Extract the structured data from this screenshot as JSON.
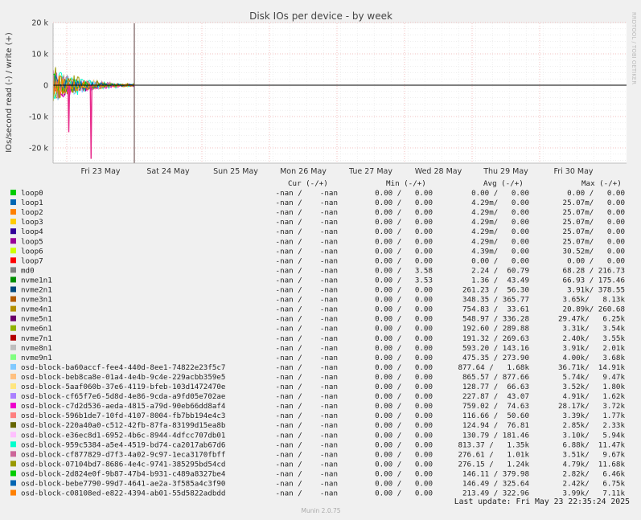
{
  "chart_data": {
    "type": "line",
    "title": "Disk IOs per device - by week",
    "ylabel": "IOs/second read (-) / write (+)",
    "ylim": [
      -25000,
      20000
    ],
    "y_ticks": [
      {
        "value": 20000,
        "label": "20 k"
      },
      {
        "value": 10000,
        "label": "10 k"
      },
      {
        "value": 0,
        "label": "0"
      },
      {
        "value": -10000,
        "label": "-10 k"
      },
      {
        "value": -20000,
        "label": "-20 k"
      }
    ],
    "x_ticks": [
      "Fri 23 May",
      "Sat 24 May",
      "Sun 25 May",
      "Mon 26 May",
      "Tue 27 May",
      "Wed 28 May",
      "Thu 29 May",
      "Fri 30 May"
    ],
    "grid": true,
    "legend_position": "bottom",
    "columns": {
      "cur": "Cur (-/+)",
      "min": "Min (-/+)",
      "avg": "Avg (-/+)",
      "max": "Max (-/+)"
    },
    "spikes": [
      {
        "day": 0.03,
        "value": -15000,
        "color": "#e7298a"
      },
      {
        "day": 0.36,
        "value": -23500,
        "color": "#e7298a"
      }
    ],
    "series": [
      {
        "name": "loop0",
        "color": "#00cc00",
        "cur": "-nan /    -nan",
        "min": "0.00 /   0.00",
        "avg": "0.00 /   0.00",
        "max": "0.00 /   0.00"
      },
      {
        "name": "loop1",
        "color": "#0066b3",
        "cur": "-nan /    -nan",
        "min": "0.00 /   0.00",
        "avg": "4.29m/   0.00",
        "max": "25.07m/   0.00"
      },
      {
        "name": "loop2",
        "color": "#ff8000",
        "cur": "-nan /    -nan",
        "min": "0.00 /   0.00",
        "avg": "4.29m/   0.00",
        "max": "25.07m/   0.00"
      },
      {
        "name": "loop3",
        "color": "#ffcc00",
        "cur": "-nan /    -nan",
        "min": "0.00 /   0.00",
        "avg": "4.29m/   0.00",
        "max": "25.07m/   0.00"
      },
      {
        "name": "loop4",
        "color": "#330099",
        "cur": "-nan /    -nan",
        "min": "0.00 /   0.00",
        "avg": "4.29m/   0.00",
        "max": "25.07m/   0.00"
      },
      {
        "name": "loop5",
        "color": "#990099",
        "cur": "-nan /    -nan",
        "min": "0.00 /   0.00",
        "avg": "4.29m/   0.00",
        "max": "25.07m/   0.00"
      },
      {
        "name": "loop6",
        "color": "#ccff00",
        "cur": "-nan /    -nan",
        "min": "0.00 /   0.00",
        "avg": "4.39m/   0.00",
        "max": "30.52m/   0.00"
      },
      {
        "name": "loop7",
        "color": "#ff0000",
        "cur": "-nan /    -nan",
        "min": "0.00 /   0.00",
        "avg": "0.00 /   0.00",
        "max": "0.00 /   0.00"
      },
      {
        "name": "md0",
        "color": "#808080",
        "cur": "-nan /    -nan",
        "min": "0.00 /   3.58",
        "avg": "2.24 /  60.79",
        "max": "68.28 / 216.73"
      },
      {
        "name": "nvme1n1",
        "color": "#008f00",
        "cur": "-nan /    -nan",
        "min": "0.00 /   3.53",
        "avg": "1.36 /  43.49",
        "max": "66.93 / 175.46"
      },
      {
        "name": "nvme2n1",
        "color": "#00487d",
        "cur": "-nan /    -nan",
        "min": "0.00 /   0.00",
        "avg": "261.23 /  56.30",
        "max": "3.91k/ 378.55"
      },
      {
        "name": "nvme3n1",
        "color": "#b35a00",
        "cur": "-nan /    -nan",
        "min": "0.00 /   0.00",
        "avg": "348.35 / 365.77",
        "max": "3.65k/   8.13k"
      },
      {
        "name": "nvme4n1",
        "color": "#b38f00",
        "cur": "-nan /    -nan",
        "min": "0.00 /   0.00",
        "avg": "754.83 /  33.61",
        "max": "20.89k/ 260.68"
      },
      {
        "name": "nvme5n1",
        "color": "#6b006b",
        "cur": "-nan /    -nan",
        "min": "0.00 /   0.00",
        "avg": "548.97 / 336.28",
        "max": "29.47k/   6.25k"
      },
      {
        "name": "nvme6n1",
        "color": "#8fb300",
        "cur": "-nan /    -nan",
        "min": "0.00 /   0.00",
        "avg": "192.60 / 289.88",
        "max": "3.31k/   3.54k"
      },
      {
        "name": "nvme7n1",
        "color": "#b30000",
        "cur": "-nan /    -nan",
        "min": "0.00 /   0.00",
        "avg": "191.32 / 269.63",
        "max": "2.40k/   3.55k"
      },
      {
        "name": "nvme8n1",
        "color": "#bebebe",
        "cur": "-nan /    -nan",
        "min": "0.00 /   0.00",
        "avg": "593.20 / 143.16",
        "max": "3.91k/   2.01k"
      },
      {
        "name": "nvme9n1",
        "color": "#80ff80",
        "cur": "-nan /    -nan",
        "min": "0.00 /   0.00",
        "avg": "475.35 / 273.90",
        "max": "4.00k/   3.68k"
      },
      {
        "name": "osd-block-ba60accf-fee4-440d-8ee1-74822e23f5c7",
        "color": "#80c9ff",
        "cur": "-nan /    -nan",
        "min": "0.00 /   0.00",
        "avg": "877.64 /   1.68k",
        "max": "36.71k/  14.91k"
      },
      {
        "name": "osd-block-beb8ca8e-01a4-4e4b-9c4e-229acbb359e5",
        "color": "#ffc080",
        "cur": "-nan /    -nan",
        "min": "0.00 /   0.00",
        "avg": "865.57 / 877.66",
        "max": "5.74k/   9.47k"
      },
      {
        "name": "osd-block-5aaf060b-37e6-4119-bfeb-103d1472470e",
        "color": "#ffe680",
        "cur": "-nan /    -nan",
        "min": "0.00 /   0.00",
        "avg": "128.77 /  66.63",
        "max": "3.52k/   1.80k"
      },
      {
        "name": "osd-block-cf65f7e6-5d8d-4e86-9cda-a9fd05e702ae",
        "color": "#aa80ff",
        "cur": "-nan /    -nan",
        "min": "0.00 /   0.00",
        "avg": "227.87 /  43.07",
        "max": "4.91k/   1.62k"
      },
      {
        "name": "osd-block-c7d2d536-aeda-4815-a79d-90eb66dd8af4",
        "color": "#ee00cc",
        "cur": "-nan /    -nan",
        "min": "0.00 /   0.00",
        "avg": "759.02 /  74.63",
        "max": "28.17k/   3.72k"
      },
      {
        "name": "osd-block-596b1de7-10fd-4107-8004-fb7bb194e4c3",
        "color": "#ff8080",
        "cur": "-nan /    -nan",
        "min": "0.00 /   0.00",
        "avg": "116.66 /  50.60",
        "max": "3.39k/   1.77k"
      },
      {
        "name": "osd-block-220a40a0-c512-42fb-87fa-83199d15ea8b",
        "color": "#666600",
        "cur": "-nan /    -nan",
        "min": "0.00 /   0.00",
        "avg": "124.94 /  76.81",
        "max": "2.85k/   2.33k"
      },
      {
        "name": "osd-block-e36ec8d1-6952-4b6c-8944-4dfcc707db01",
        "color": "#ffbfff",
        "cur": "-nan /    -nan",
        "min": "0.00 /   0.00",
        "avg": "130.79 / 181.46",
        "max": "3.10k/   5.94k"
      },
      {
        "name": "osd-block-959c5384-a5e4-4519-bd74-ca2017ab67d6",
        "color": "#00ffcc",
        "cur": "-nan /    -nan",
        "min": "0.00 /   0.00",
        "avg": "813.37 /   1.35k",
        "max": "6.88k/  11.47k"
      },
      {
        "name": "osd-block-cf877829-d7f3-4a02-9c97-1eca3170fbff",
        "color": "#cc6699",
        "cur": "-nan /    -nan",
        "min": "0.00 /   0.00",
        "avg": "276.61 /   1.01k",
        "max": "3.51k/   9.67k"
      },
      {
        "name": "osd-block-07104bd7-8686-4e4c-9741-385295bd54cd",
        "color": "#999900",
        "cur": "-nan /    -nan",
        "min": "0.00 /   0.00",
        "avg": "276.15 /   1.24k",
        "max": "4.79k/  11.68k"
      },
      {
        "name": "osd-block-2d824e0f-9b87-47b4-b931-c489a8327be4",
        "color": "#00cc00",
        "cur": "-nan /    -nan",
        "min": "0.00 /   0.00",
        "avg": "146.11 / 379.98",
        "max": "2.82k/   6.46k"
      },
      {
        "name": "osd-block-bebe7790-99d7-4641-ae2a-3f585a4c3f90",
        "color": "#0066b3",
        "cur": "-nan /    -nan",
        "min": "0.00 /   0.00",
        "avg": "146.49 / 325.64",
        "max": "2.42k/   6.75k"
      },
      {
        "name": "osd-block-c08108ed-e822-4394-ab01-55d5822adbdd",
        "color": "#ff8000",
        "cur": "-nan /    -nan",
        "min": "0.00 /   0.00",
        "avg": "213.49 / 322.96",
        "max": "3.99k/   7.11k"
      }
    ]
  },
  "watermark": "RRDTOOL / TOBI OETIKER",
  "last_update": "Last update:  Fri May 23 22:35:24 2025",
  "footer": "Munin 2.0.75"
}
